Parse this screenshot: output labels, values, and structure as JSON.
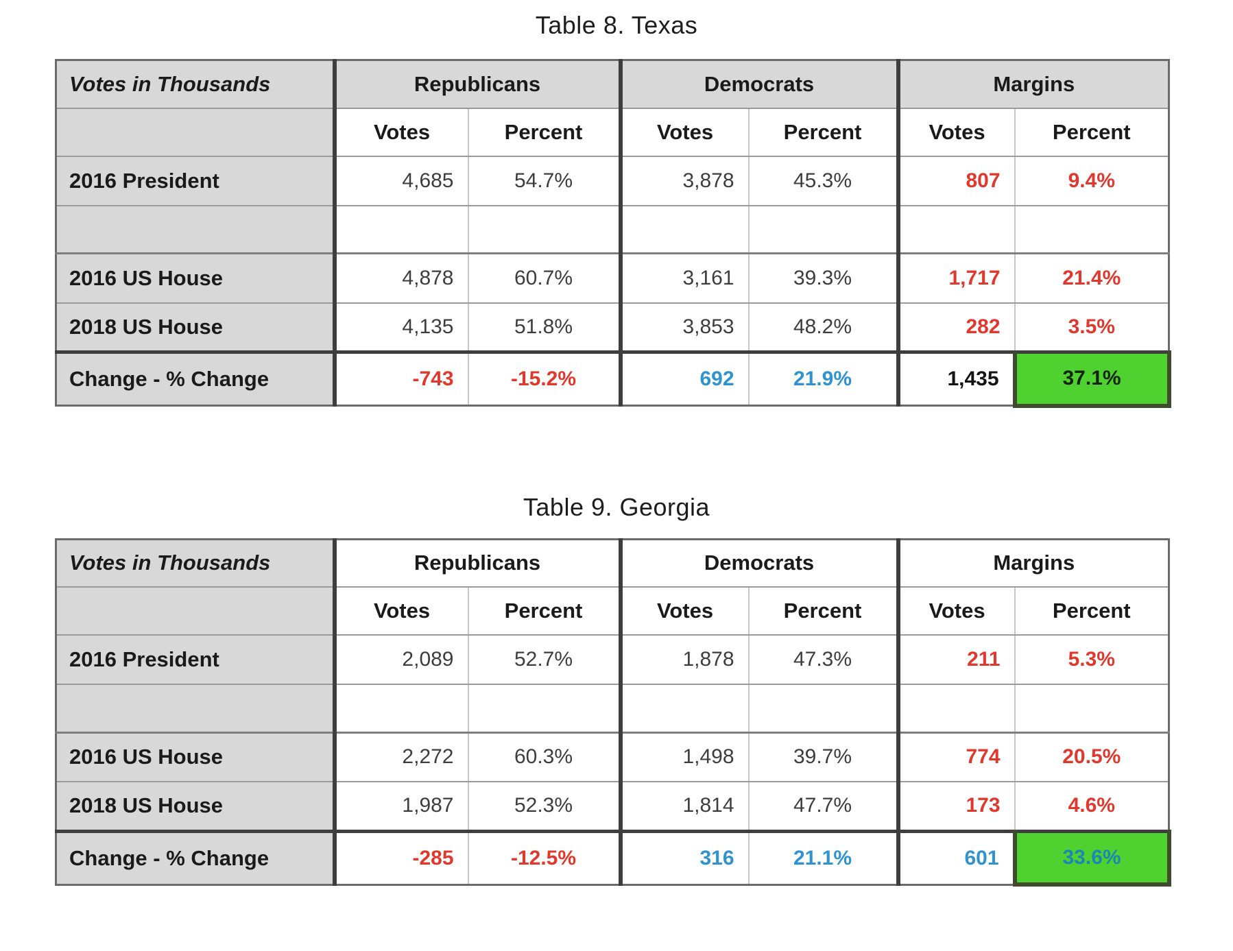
{
  "colors": {
    "red": "#e0382c",
    "blue": "#2f93d0",
    "green": "#4fd130",
    "header_gray": "#d8d8d8"
  },
  "tables": [
    {
      "title": "Table 8. Texas",
      "corner_label": "Votes in Thousands",
      "group_headers": [
        "Republicans",
        "Democrats",
        "Margins"
      ],
      "sub_headers": [
        "Votes",
        "Percent",
        "Votes",
        "Percent",
        "Votes",
        "Percent"
      ],
      "group_header_shaded": true,
      "rows": [
        {
          "label": "2016 President",
          "kind": "data",
          "separator": "none",
          "cells": [
            {
              "text": "4,685",
              "style": "plain"
            },
            {
              "text": "54.7%",
              "style": "plain"
            },
            {
              "text": "3,878",
              "style": "plain"
            },
            {
              "text": "45.3%",
              "style": "plain"
            },
            {
              "text": "807",
              "style": "red"
            },
            {
              "text": "9.4%",
              "style": "red"
            }
          ]
        },
        {
          "label": "",
          "kind": "spacer",
          "separator": "none",
          "cells": [
            {
              "text": "",
              "style": "empty"
            },
            {
              "text": "",
              "style": "empty"
            },
            {
              "text": "",
              "style": "empty"
            },
            {
              "text": "",
              "style": "empty"
            },
            {
              "text": "",
              "style": "empty"
            },
            {
              "text": "",
              "style": "empty"
            }
          ]
        },
        {
          "label": "2016 US House",
          "kind": "data",
          "separator": "medium",
          "cells": [
            {
              "text": "4,878",
              "style": "plain"
            },
            {
              "text": "60.7%",
              "style": "plain"
            },
            {
              "text": "3,161",
              "style": "plain"
            },
            {
              "text": "39.3%",
              "style": "plain"
            },
            {
              "text": "1,717",
              "style": "red"
            },
            {
              "text": "21.4%",
              "style": "red"
            }
          ]
        },
        {
          "label": "2018 US House",
          "kind": "data",
          "separator": "none",
          "cells": [
            {
              "text": "4,135",
              "style": "plain"
            },
            {
              "text": "51.8%",
              "style": "plain"
            },
            {
              "text": "3,853",
              "style": "plain"
            },
            {
              "text": "48.2%",
              "style": "plain"
            },
            {
              "text": "282",
              "style": "red"
            },
            {
              "text": "3.5%",
              "style": "red"
            }
          ]
        },
        {
          "label": "Change - % Change",
          "kind": "change",
          "separator": "thick",
          "cells": [
            {
              "text": "-743",
              "style": "red"
            },
            {
              "text": "-15.2%",
              "style": "red"
            },
            {
              "text": "692",
              "style": "blue"
            },
            {
              "text": "21.9%",
              "style": "blue"
            },
            {
              "text": "1,435",
              "style": "bold"
            },
            {
              "text": "37.1%",
              "style": "green-black"
            }
          ]
        }
      ]
    },
    {
      "title": "Table 9. Georgia",
      "corner_label": "Votes in Thousands",
      "group_headers": [
        "Republicans",
        "Democrats",
        "Margins"
      ],
      "sub_headers": [
        "Votes",
        "Percent",
        "Votes",
        "Percent",
        "Votes",
        "Percent"
      ],
      "group_header_shaded": false,
      "rows": [
        {
          "label": "2016 President",
          "kind": "data",
          "separator": "none",
          "cells": [
            {
              "text": "2,089",
              "style": "plain"
            },
            {
              "text": "52.7%",
              "style": "plain"
            },
            {
              "text": "1,878",
              "style": "plain"
            },
            {
              "text": "47.3%",
              "style": "plain"
            },
            {
              "text": "211",
              "style": "red"
            },
            {
              "text": "5.3%",
              "style": "red"
            }
          ]
        },
        {
          "label": "",
          "kind": "spacer",
          "separator": "none",
          "cells": [
            {
              "text": "",
              "style": "empty"
            },
            {
              "text": "",
              "style": "empty"
            },
            {
              "text": "",
              "style": "empty"
            },
            {
              "text": "",
              "style": "empty"
            },
            {
              "text": "",
              "style": "empty"
            },
            {
              "text": "",
              "style": "empty"
            }
          ]
        },
        {
          "label": "2016 US House",
          "kind": "data",
          "separator": "medium",
          "cells": [
            {
              "text": "2,272",
              "style": "plain"
            },
            {
              "text": "60.3%",
              "style": "plain"
            },
            {
              "text": "1,498",
              "style": "plain"
            },
            {
              "text": "39.7%",
              "style": "plain"
            },
            {
              "text": "774",
              "style": "red"
            },
            {
              "text": "20.5%",
              "style": "red"
            }
          ]
        },
        {
          "label": "2018 US House",
          "kind": "data",
          "separator": "none",
          "cells": [
            {
              "text": "1,987",
              "style": "plain"
            },
            {
              "text": "52.3%",
              "style": "plain"
            },
            {
              "text": "1,814",
              "style": "plain"
            },
            {
              "text": "47.7%",
              "style": "plain"
            },
            {
              "text": "173",
              "style": "red"
            },
            {
              "text": "4.6%",
              "style": "red"
            }
          ]
        },
        {
          "label": "Change - % Change",
          "kind": "change",
          "separator": "thick",
          "cells": [
            {
              "text": "-285",
              "style": "red"
            },
            {
              "text": "-12.5%",
              "style": "red"
            },
            {
              "text": "316",
              "style": "blue"
            },
            {
              "text": "21.1%",
              "style": "blue"
            },
            {
              "text": "601",
              "style": "blue"
            },
            {
              "text": "33.6%",
              "style": "green-blue"
            }
          ]
        }
      ]
    }
  ]
}
